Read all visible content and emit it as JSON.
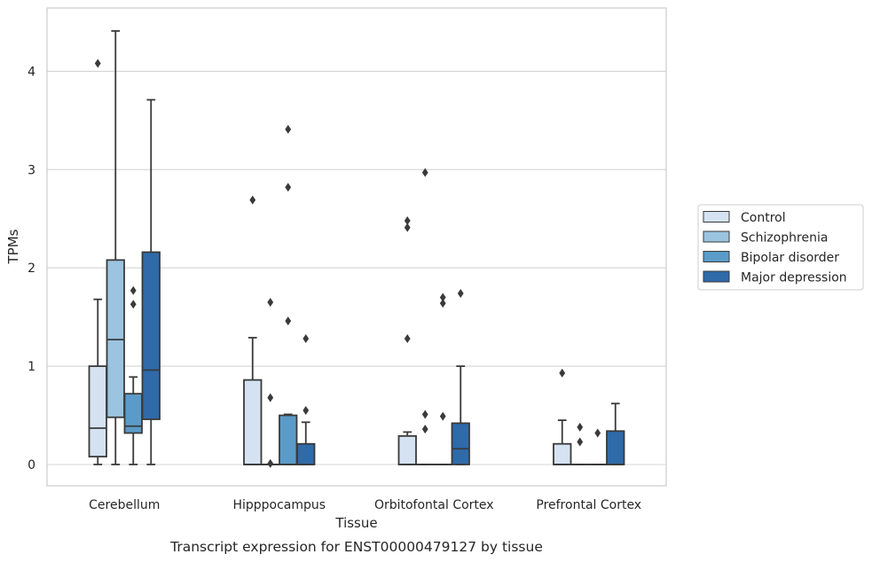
{
  "chart_data": {
    "type": "box",
    "title": "",
    "caption": "Transcript expression for ENST00000479127 by tissue",
    "xlabel": "Tissue",
    "ylabel": "TPMs",
    "ylim": [
      -0.22,
      4.65
    ],
    "yticks": [
      0,
      1,
      2,
      3,
      4
    ],
    "grid": "horizontal",
    "legend_position": "right",
    "categories": [
      "Cerebellum",
      "Hipppocampus",
      "Orbitofontal Cortex",
      "Prefrontal Cortex"
    ],
    "series": [
      {
        "name": "Control",
        "color": "#d4e2f1",
        "boxes": [
          {
            "whisker_low": 0,
            "q1": 0.08,
            "median": 0.37,
            "q3": 1.0,
            "whisker_high": 1.68,
            "outliers": [
              4.08
            ]
          },
          {
            "whisker_low": 0,
            "q1": 0,
            "median": 0,
            "q3": 0.86,
            "whisker_high": 1.29,
            "outliers": [
              2.69
            ]
          },
          {
            "whisker_low": 0,
            "q1": 0,
            "median": 0,
            "q3": 0.29,
            "whisker_high": 0.33,
            "outliers": [
              2.48,
              2.41,
              1.28
            ]
          },
          {
            "whisker_low": 0,
            "q1": 0,
            "median": 0,
            "q3": 0.21,
            "whisker_high": 0.45,
            "outliers": [
              0.93
            ]
          }
        ]
      },
      {
        "name": "Schizophrenia",
        "color": "#9ac4e0",
        "boxes": [
          {
            "whisker_low": 0,
            "q1": 0.48,
            "median": 1.27,
            "q3": 2.08,
            "whisker_high": 4.41,
            "outliers": []
          },
          {
            "whisker_low": 0,
            "q1": 0,
            "median": 0,
            "q3": 0,
            "whisker_high": 0,
            "outliers": [
              1.65,
              0.68,
              0.01
            ]
          },
          {
            "whisker_low": 0,
            "q1": 0,
            "median": 0,
            "q3": 0,
            "whisker_high": 0,
            "outliers": [
              2.97,
              0.51,
              0.36
            ]
          },
          {
            "whisker_low": 0,
            "q1": 0,
            "median": 0,
            "q3": 0,
            "whisker_high": 0,
            "outliers": [
              0.38,
              0.23
            ]
          }
        ]
      },
      {
        "name": "Bipolar disorder",
        "color": "#5a9bc9",
        "boxes": [
          {
            "whisker_low": 0,
            "q1": 0.32,
            "median": 0.39,
            "q3": 0.72,
            "whisker_high": 0.89,
            "outliers": [
              1.77,
              1.63
            ]
          },
          {
            "whisker_low": 0,
            "q1": 0,
            "median": 0,
            "q3": 0.5,
            "whisker_high": 0.51,
            "outliers": [
              3.41,
              2.82,
              1.46
            ]
          },
          {
            "whisker_low": 0,
            "q1": 0,
            "median": 0,
            "q3": 0,
            "whisker_high": 0,
            "outliers": [
              1.7,
              1.64,
              0.49
            ]
          },
          {
            "whisker_low": 0,
            "q1": 0,
            "median": 0,
            "q3": 0,
            "whisker_high": 0,
            "outliers": [
              0.32
            ]
          }
        ]
      },
      {
        "name": "Major depression",
        "color": "#2f6aa9",
        "boxes": [
          {
            "whisker_low": 0,
            "q1": 0.46,
            "median": 0.96,
            "q3": 2.16,
            "whisker_high": 3.71,
            "outliers": []
          },
          {
            "whisker_low": 0,
            "q1": 0,
            "median": 0,
            "q3": 0.21,
            "whisker_high": 0.43,
            "outliers": [
              1.28,
              0.55
            ]
          },
          {
            "whisker_low": 0,
            "q1": 0,
            "median": 0.16,
            "q3": 0.42,
            "whisker_high": 1.0,
            "outliers": [
              1.74
            ]
          },
          {
            "whisker_low": 0,
            "q1": 0,
            "median": 0,
            "q3": 0.34,
            "whisker_high": 0.62,
            "outliers": []
          }
        ]
      }
    ]
  }
}
